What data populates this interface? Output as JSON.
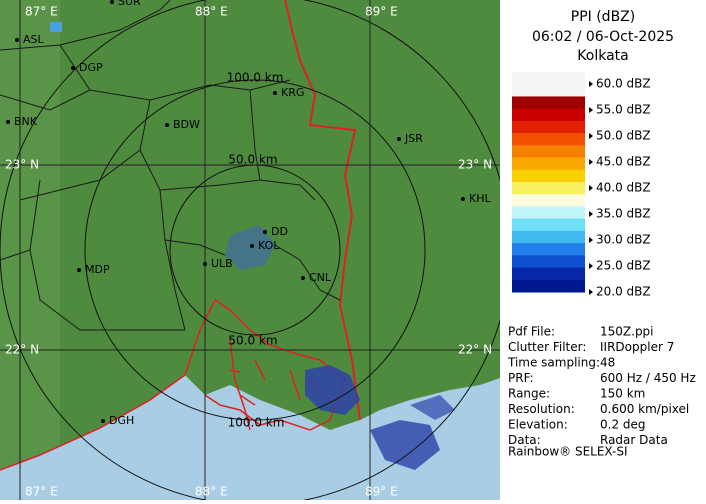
{
  "map": {
    "grid_labels": {
      "top": [
        "87° E",
        "88° E",
        "89° E"
      ],
      "bottom": [
        "87° E",
        "88° E",
        "89° E"
      ],
      "left": [
        "23° N",
        "22° N"
      ],
      "right": [
        "23° N",
        "22° N"
      ]
    },
    "range_labels": [
      "100.0 km",
      "50.0 km",
      "50.0 km",
      "100.0 km"
    ],
    "stations": [
      "SUR",
      "ASL",
      "DGP",
      "BNK",
      "BDW",
      "KRG",
      "JSR",
      "KHL",
      "MDP",
      "DD",
      "KOL",
      "ULB",
      "CNL",
      "DGH"
    ]
  },
  "panel": {
    "title": "PPI (dBZ)",
    "time": "06:02 / 06-Oct-2025",
    "site": "Kolkata",
    "legend": [
      "60.0 dBZ",
      "55.0 dBZ",
      "50.0 dBZ",
      "45.0 dBZ",
      "40.0 dBZ",
      "35.0 dBZ",
      "30.0 dBZ",
      "25.0 dBZ",
      "20.0 dBZ"
    ],
    "info": [
      {
        "label": "Pdf File:",
        "value": "150Z.ppi"
      },
      {
        "label": "Clutter Filter:",
        "value": "IIRDoppler 7"
      },
      {
        "label": "Time sampling:",
        "value": "48"
      },
      {
        "label": "PRF:",
        "value": "600 Hz / 450 Hz"
      },
      {
        "label": "Range:",
        "value": "150 km"
      },
      {
        "label": "Resolution:",
        "value": "0.600 km/pixel"
      },
      {
        "label": "Elevation:",
        "value": "0.2 deg"
      },
      {
        "label": "Data:",
        "value": "Radar Data"
      }
    ],
    "footer": "Rainbow® SELEX-SI"
  }
}
